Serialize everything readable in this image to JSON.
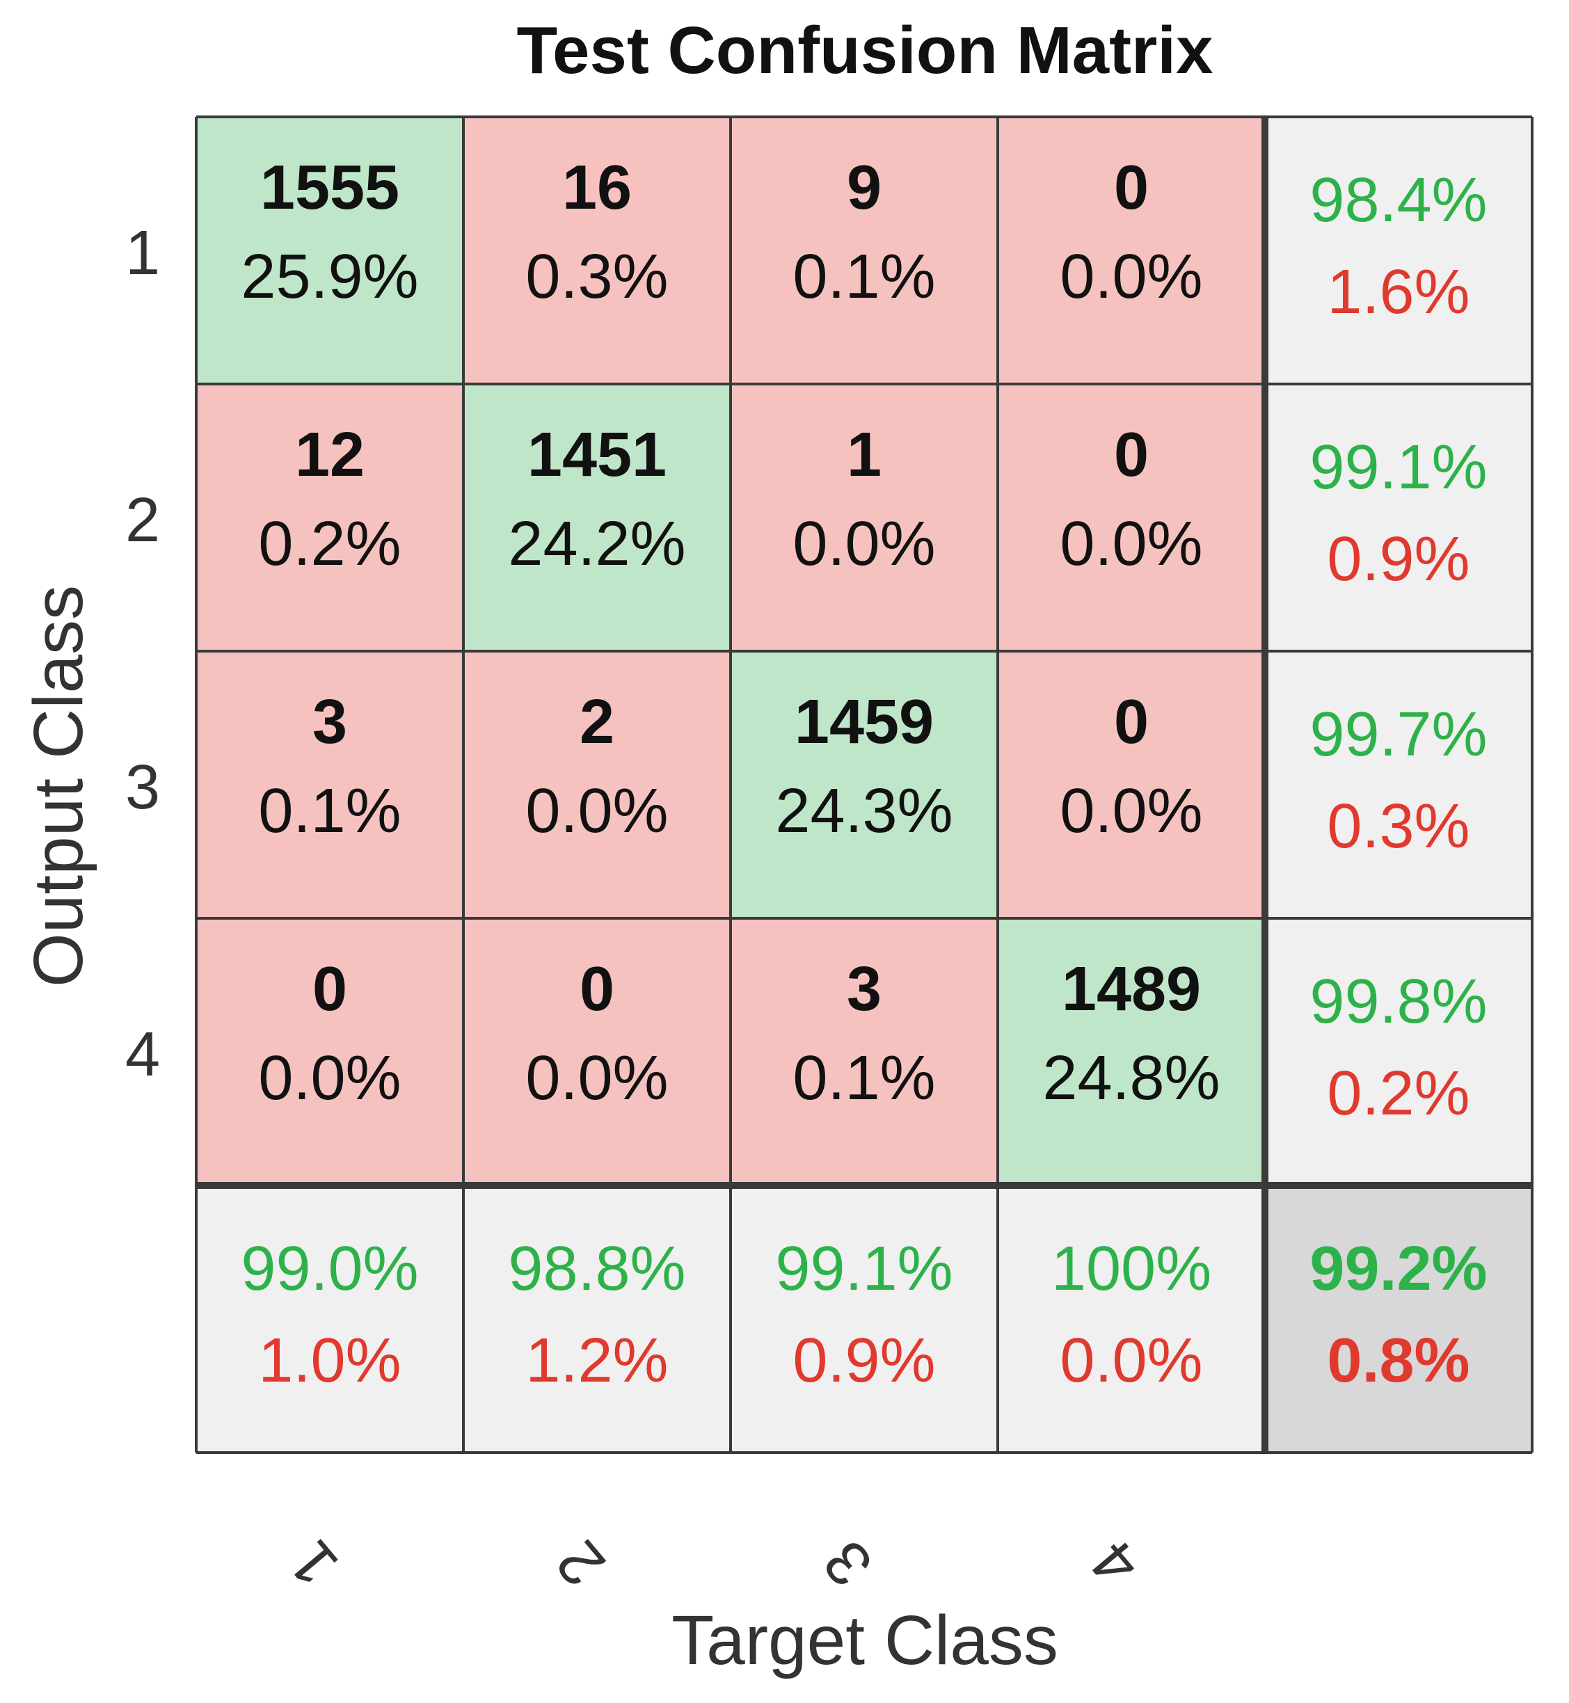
{
  "chart_data": {
    "type": "heatmap",
    "title": "Test Confusion Matrix",
    "xlabel": "Target Class",
    "ylabel": "Output Class",
    "x_tick_labels": [
      "1",
      "2",
      "3",
      "4"
    ],
    "y_tick_labels": [
      "1",
      "2",
      "3",
      "4"
    ],
    "matrix": [
      [
        {
          "count": "1555",
          "pct": "25.9%"
        },
        {
          "count": "16",
          "pct": "0.3%"
        },
        {
          "count": "9",
          "pct": "0.1%"
        },
        {
          "count": "0",
          "pct": "0.0%"
        }
      ],
      [
        {
          "count": "12",
          "pct": "0.2%"
        },
        {
          "count": "1451",
          "pct": "24.2%"
        },
        {
          "count": "1",
          "pct": "0.0%"
        },
        {
          "count": "0",
          "pct": "0.0%"
        }
      ],
      [
        {
          "count": "3",
          "pct": "0.1%"
        },
        {
          "count": "2",
          "pct": "0.0%"
        },
        {
          "count": "1459",
          "pct": "24.3%"
        },
        {
          "count": "0",
          "pct": "0.0%"
        }
      ],
      [
        {
          "count": "0",
          "pct": "0.0%"
        },
        {
          "count": "0",
          "pct": "0.0%"
        },
        {
          "count": "3",
          "pct": "0.1%"
        },
        {
          "count": "1489",
          "pct": "24.8%"
        }
      ]
    ],
    "row_summary": [
      {
        "correct": "98.4%",
        "error": "1.6%"
      },
      {
        "correct": "99.1%",
        "error": "0.9%"
      },
      {
        "correct": "99.7%",
        "error": "0.3%"
      },
      {
        "correct": "99.8%",
        "error": "0.2%"
      }
    ],
    "col_summary": [
      {
        "correct": "99.0%",
        "error": "1.0%"
      },
      {
        "correct": "98.8%",
        "error": "1.2%"
      },
      {
        "correct": "99.1%",
        "error": "0.9%"
      },
      {
        "correct": "100%",
        "error": "0.0%"
      }
    ],
    "overall": {
      "correct": "99.2%",
      "error": "0.8%"
    },
    "colors": {
      "diagonal": "#bfe6c8",
      "off_diagonal": "#f6c2bf",
      "summary": "#f0f0f0",
      "overall": "#d8d8d8",
      "correct_text": "#2db24a",
      "error_text": "#e0392e",
      "count_text": "#111111",
      "grid": "#3a3a3a"
    }
  }
}
